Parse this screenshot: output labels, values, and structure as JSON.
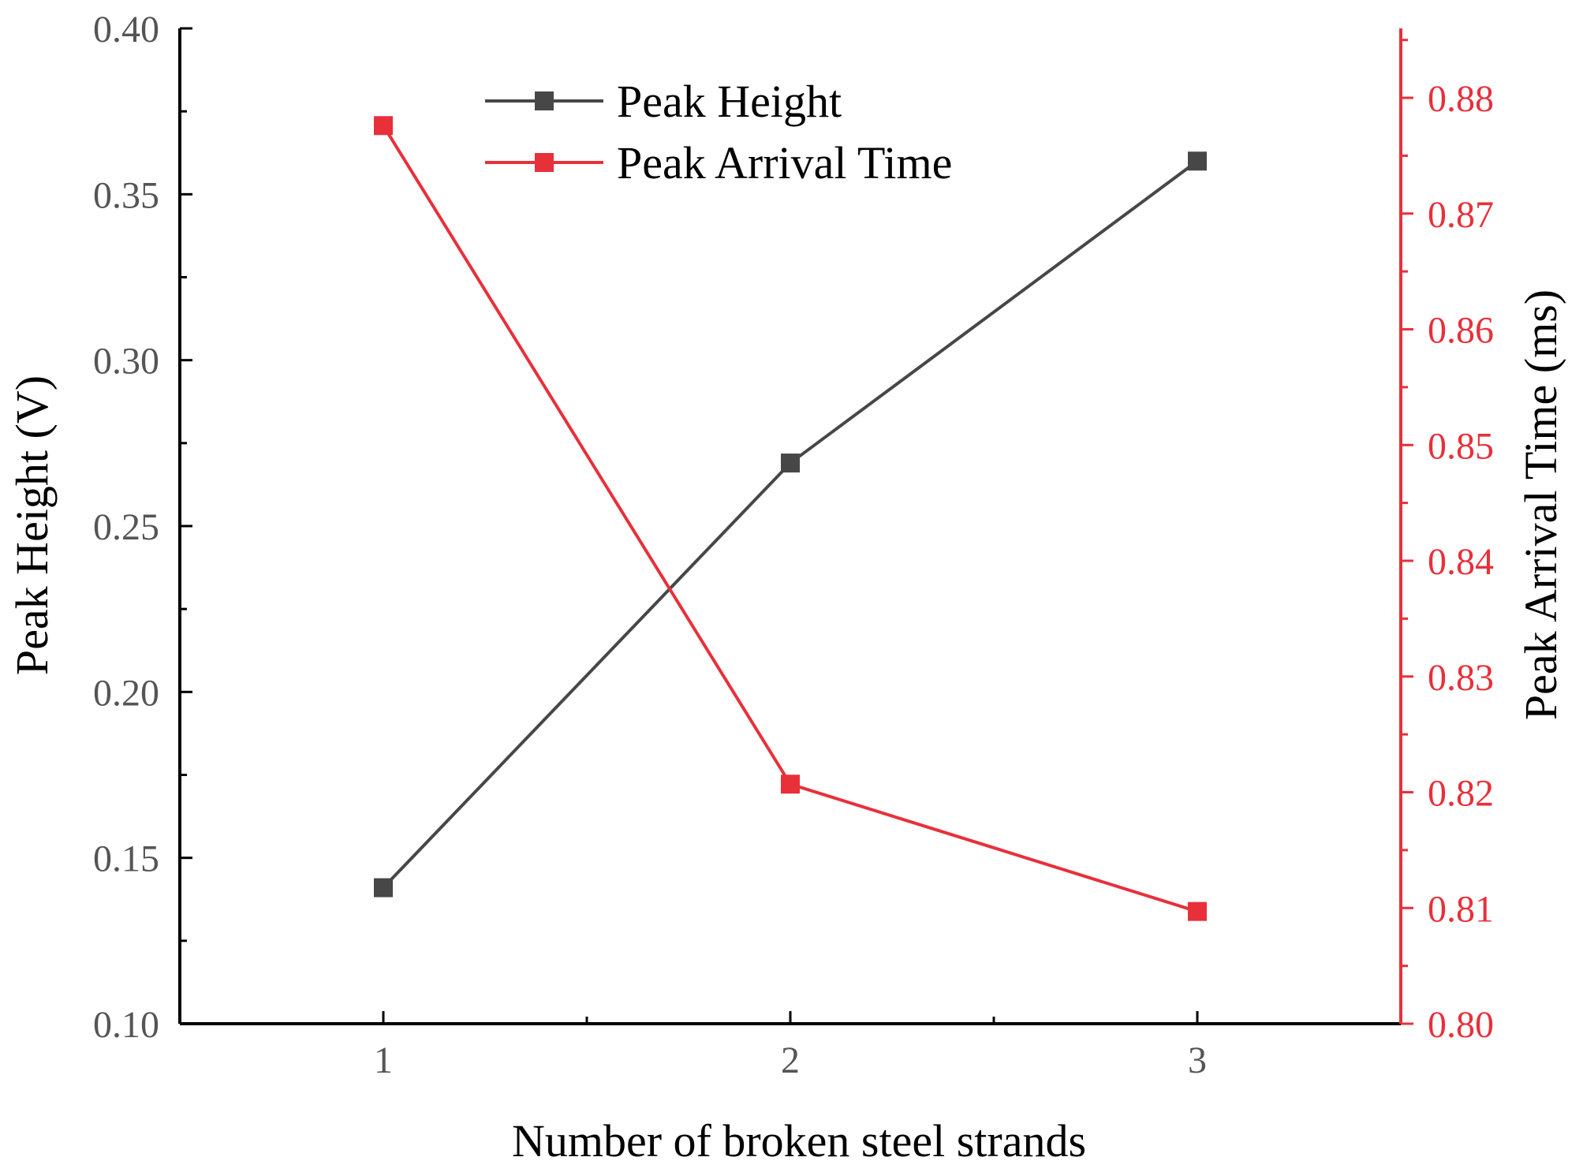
{
  "colors": {
    "left_axis": "#000000",
    "left_tick_labels": "#555555",
    "right_axis": "#e8303a",
    "series_peak_height": "#474747",
    "series_peak_arrival_time": "#e8303a"
  },
  "chart_data": {
    "type": "line",
    "title": "",
    "xlabel": "Number of broken steel strands",
    "ylabel_left": "Peak Height (V)",
    "ylabel_right": "Peak Arrival Time (ms)",
    "x_ticks": [
      "1",
      "2",
      "3"
    ],
    "xlim": [
      0.5,
      3.5
    ],
    "ylim_left": [
      0.1,
      0.4
    ],
    "yticks_left": [
      "0.10",
      "0.15",
      "0.20",
      "0.25",
      "0.30",
      "0.35",
      "0.40"
    ],
    "ylim_right": [
      0.8,
      0.886
    ],
    "yticks_right": [
      "0.80",
      "0.81",
      "0.82",
      "0.83",
      "0.84",
      "0.85",
      "0.86",
      "0.87",
      "0.88"
    ],
    "legend_position": "top-center",
    "grid": false,
    "series": [
      {
        "name": "Peak Height",
        "axis": "left",
        "marker": "square",
        "x": [
          1,
          2,
          3
        ],
        "values": [
          0.141,
          0.269,
          0.36
        ]
      },
      {
        "name": "Peak Arrival Time",
        "axis": "right",
        "marker": "square",
        "x": [
          1,
          2,
          3
        ],
        "values": [
          0.8776,
          0.8207,
          0.8097
        ]
      }
    ]
  }
}
